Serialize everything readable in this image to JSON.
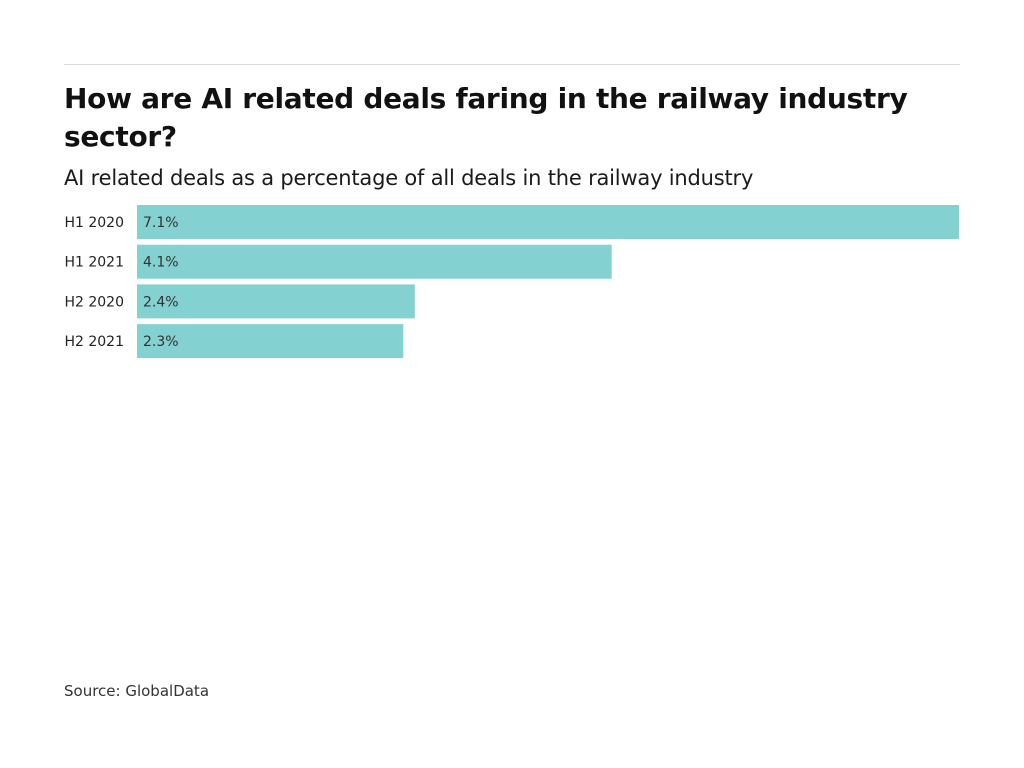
{
  "header": {
    "title": "How are AI related deals faring in the railway industry sector?",
    "subtitle": "AI related deals as a percentage of all deals in the railway industry"
  },
  "footer": {
    "source": "Source: GlobalData"
  },
  "colors": {
    "bar": "#84d1d1",
    "label_text": "#333333"
  },
  "chart_data": {
    "type": "bar",
    "orientation": "horizontal",
    "title": "How are AI related deals faring in the railway industry sector?",
    "subtitle": "AI related deals as a percentage of all deals in the railway industry",
    "categories": [
      "H1 2020",
      "H1 2021",
      "H2 2020",
      "H2 2021"
    ],
    "values": [
      7.1,
      4.1,
      2.4,
      2.3
    ],
    "value_labels": [
      "7.1%",
      "4.1%",
      "2.4%",
      "2.3%"
    ],
    "unit": "%",
    "xlabel": "",
    "ylabel": "",
    "xlim": [
      0,
      7.1
    ],
    "grid": false,
    "legend": "none"
  }
}
